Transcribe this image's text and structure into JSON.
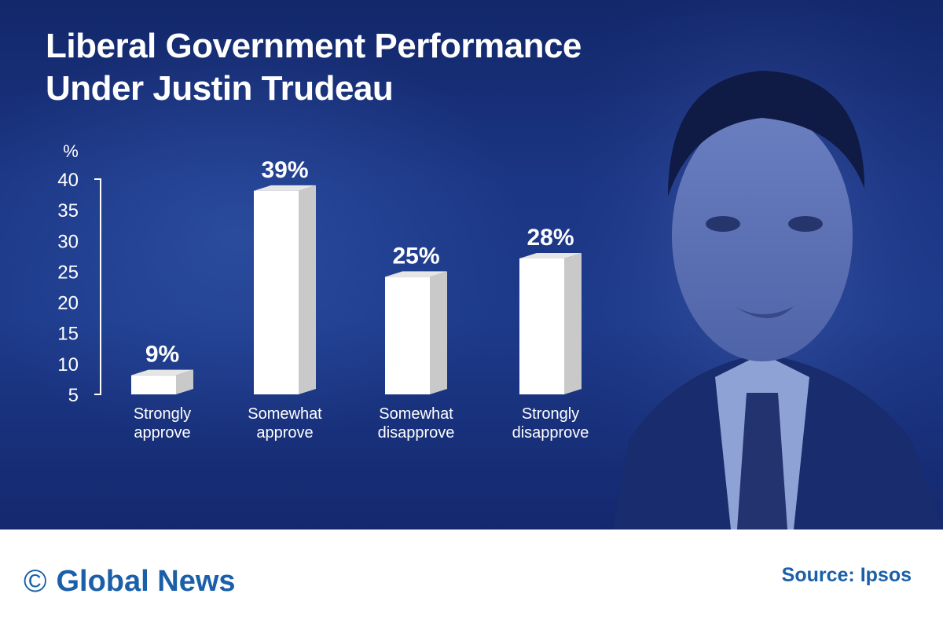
{
  "title_lines": [
    "Liberal Government Performance",
    "Under Justin Trudeau"
  ],
  "footer": {
    "brand": "Global News",
    "copyright_symbol": "©",
    "source": "Source: Ipsos"
  },
  "colors": {
    "background": "#1b3684",
    "bar_face": "#ffffff",
    "bar_side": "#c9c9c9",
    "text": "#ffffff",
    "brand_blue": "#1a5fa8"
  },
  "chart_data": {
    "type": "bar",
    "title": "Liberal Government Performance Under Justin Trudeau",
    "ylabel": "%",
    "xlabel": "",
    "yticks": [
      5,
      10,
      15,
      20,
      25,
      30,
      35,
      40
    ],
    "ylim": [
      5,
      40
    ],
    "categories": [
      [
        "Strongly",
        "approve"
      ],
      [
        "Somewhat",
        "approve"
      ],
      [
        "Somewhat",
        "disapprove"
      ],
      [
        "Strongly",
        "disapprove"
      ]
    ],
    "values": [
      9,
      39,
      25,
      28
    ],
    "value_labels": [
      "9%",
      "39%",
      "25%",
      "28%"
    ],
    "grid": false,
    "legend": "none"
  }
}
